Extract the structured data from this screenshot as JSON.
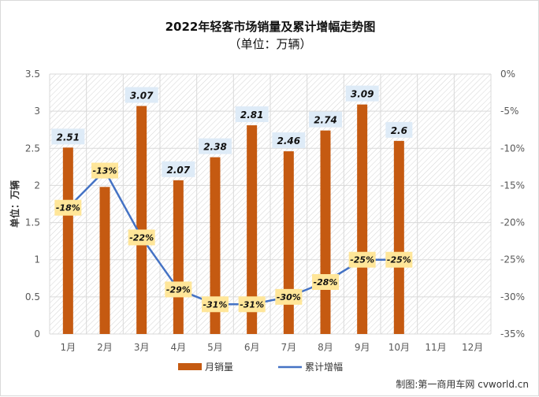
{
  "colors": {
    "bar": "#C55A11",
    "line": "#4472C4",
    "bar_label_bg": "#DEEBF7",
    "line_label_bg": "#FFE699",
    "grid": "#d9d9d9",
    "axis_text": "#595959"
  },
  "chart_data": {
    "type": "bar",
    "title": "2022年轻客市场销量及累计增幅走势图",
    "subtitle": "（单位：万辆）",
    "ylabel": "单位：万辆",
    "categories": [
      "1月",
      "2月",
      "3月",
      "4月",
      "5月",
      "6月",
      "7月",
      "8月",
      "9月",
      "10月",
      "11月",
      "12月"
    ],
    "ylim": [
      0,
      3.5
    ],
    "y_ticks": [
      0,
      0.5,
      1,
      1.5,
      2,
      2.5,
      3,
      3.5
    ],
    "y_tick_labels": [
      "0",
      "0.5",
      "1",
      "1.5",
      "2",
      "2.5",
      "3",
      "3.5"
    ],
    "y2lim": [
      -35,
      0
    ],
    "y2_ticks": [
      0,
      -5,
      -10,
      -15,
      -20,
      -25,
      -30,
      -35
    ],
    "y2_tick_labels": [
      "0%",
      "-5%",
      "-10%",
      "-15%",
      "-20%",
      "-25%",
      "-30%",
      "-35%"
    ],
    "series": [
      {
        "name": "月销量",
        "type": "bar",
        "axis": "left",
        "values": [
          2.51,
          1.98,
          3.07,
          2.07,
          2.38,
          2.81,
          2.46,
          2.74,
          3.09,
          2.6,
          null,
          null
        ],
        "labels": [
          "2.51",
          "",
          "3.07",
          "2.07",
          "2.38",
          "2.81",
          "2.46",
          "2.74",
          "3.09",
          "2.6",
          "",
          ""
        ]
      },
      {
        "name": "累计增幅",
        "type": "line",
        "axis": "right",
        "values": [
          -18,
          -13,
          -22,
          -29,
          -31,
          -31,
          -30,
          -28,
          -25,
          -25,
          null,
          null
        ],
        "labels": [
          "-18%",
          "-13%",
          "-22%",
          "-29%",
          "-31%",
          "-31%",
          "-30%",
          "-28%",
          "-25%",
          "-25%",
          "",
          ""
        ]
      }
    ],
    "legend": "bottom",
    "grid": true
  },
  "source": "制图:第一商用车网 cvworld.cn"
}
